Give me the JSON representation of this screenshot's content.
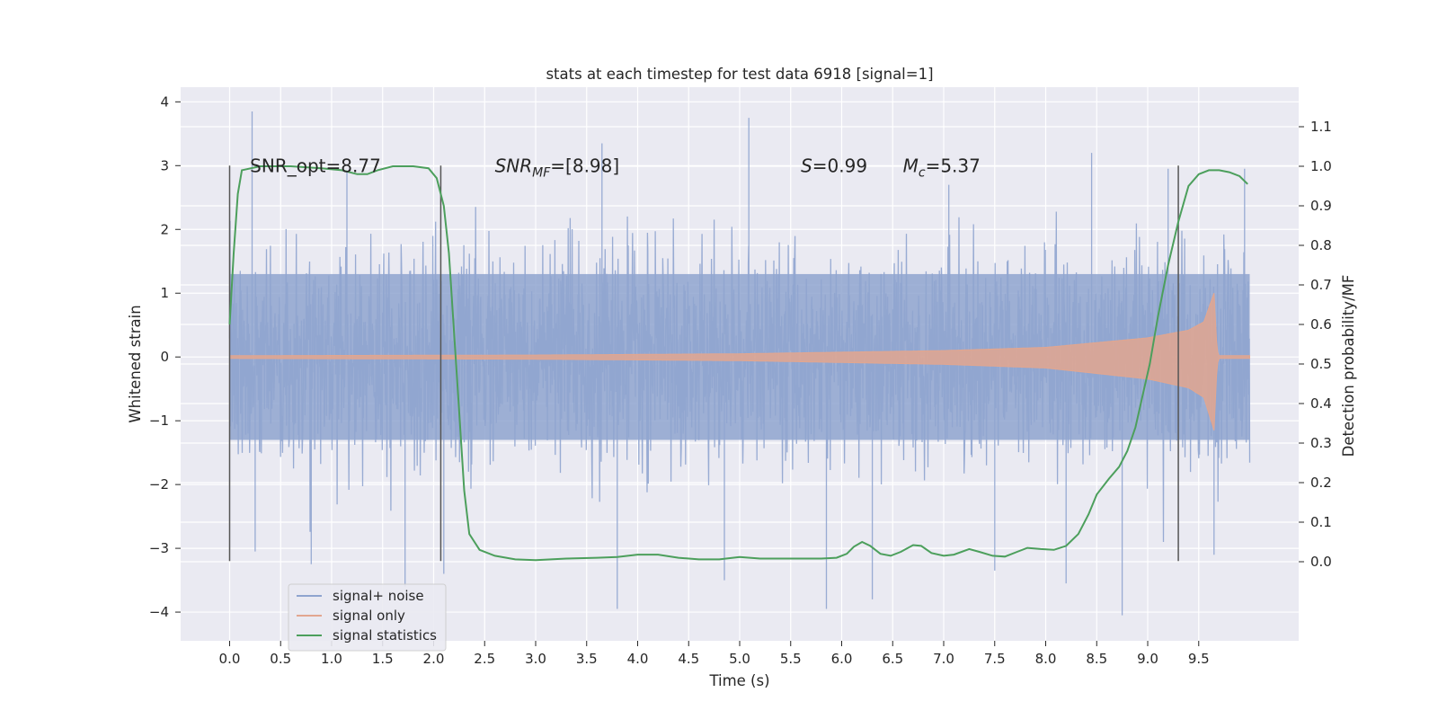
{
  "chart_data": {
    "type": "line",
    "title": "stats at each timestep for test data 6918 [signal=1]",
    "xlabel": "Time (s)",
    "ylabel": "Whitened strain",
    "y2label": "Detection probability/MF",
    "xlim": [
      -0.48,
      10.48
    ],
    "ylim": [
      -4.45,
      4.23
    ],
    "y2lim": [
      -0.2,
      1.2
    ],
    "xticks": [
      0.0,
      0.5,
      1.0,
      1.5,
      2.0,
      2.5,
      3.0,
      3.5,
      4.0,
      4.5,
      5.0,
      5.5,
      6.0,
      6.5,
      7.0,
      7.5,
      8.0,
      8.5,
      9.0,
      9.5
    ],
    "xtick_labels": [
      "0.0",
      "0.5",
      "1.0",
      "1.5",
      "2.0",
      "2.5",
      "3.0",
      "3.5",
      "4.0",
      "4.5",
      "5.0",
      "5.5",
      "6.0",
      "6.5",
      "7.0",
      "7.5",
      "8.0",
      "8.5",
      "9.0",
      "9.5"
    ],
    "yticks": [
      -4,
      -3,
      -2,
      -1,
      0,
      1,
      2,
      3,
      4
    ],
    "ytick_labels": [
      "−4",
      "−3",
      "−2",
      "−1",
      "0",
      "1",
      "2",
      "3",
      "4"
    ],
    "y2ticks": [
      0.0,
      0.1,
      0.2,
      0.3,
      0.4,
      0.5,
      0.6,
      0.7,
      0.8,
      0.9,
      1.0,
      1.1
    ],
    "y2tick_labels": [
      "0.0",
      "0.1",
      "0.2",
      "0.3",
      "0.4",
      "0.5",
      "0.6",
      "0.7",
      "0.8",
      "0.9",
      "1.0",
      "1.1"
    ],
    "grid": true,
    "legend_position": "bottom-left",
    "series": [
      {
        "name": "signal+ noise",
        "color": "#8fa4cf",
        "axis": "left",
        "t_range": [
          0.0,
          10.0
        ],
        "typical_envelope": [
          -1.3,
          1.3
        ],
        "spikes": [
          [
            0.22,
            3.85
          ],
          [
            0.25,
            -3.05
          ],
          [
            0.8,
            -3.25
          ],
          [
            1.15,
            2.9
          ],
          [
            1.72,
            -3.6
          ],
          [
            2.1,
            -3.4
          ],
          [
            3.65,
            3.35
          ],
          [
            3.8,
            -3.95
          ],
          [
            5.09,
            3.75
          ],
          [
            4.85,
            -3.5
          ],
          [
            5.85,
            -3.95
          ],
          [
            6.3,
            -3.8
          ],
          [
            7.05,
            2.7
          ],
          [
            7.5,
            -3.35
          ],
          [
            8.2,
            -3.55
          ],
          [
            8.45,
            3.2
          ],
          [
            8.75,
            -4.05
          ],
          [
            9.2,
            2.95
          ],
          [
            9.65,
            -3.1
          ],
          [
            9.95,
            2.95
          ]
        ]
      },
      {
        "name": "signal only",
        "color": "#e2a68f",
        "axis": "left",
        "t_range": [
          0.0,
          10.0
        ],
        "amplitude": [
          [
            0.0,
            0.02
          ],
          [
            3.0,
            0.03
          ],
          [
            5.0,
            0.05
          ],
          [
            7.0,
            0.1
          ],
          [
            8.0,
            0.15
          ],
          [
            9.0,
            0.3
          ],
          [
            9.4,
            0.42
          ],
          [
            9.55,
            0.55
          ],
          [
            9.65,
            1.0
          ],
          [
            9.68,
            0.1
          ],
          [
            9.7,
            0.02
          ],
          [
            10.0,
            0.02
          ]
        ]
      },
      {
        "name": "signal statistics",
        "color": "#4c9f5c",
        "axis": "right",
        "points": [
          [
            0.0,
            0.6
          ],
          [
            0.04,
            0.78
          ],
          [
            0.08,
            0.93
          ],
          [
            0.12,
            0.99
          ],
          [
            0.3,
            1.0
          ],
          [
            0.6,
            1.0
          ],
          [
            0.9,
            0.995
          ],
          [
            1.1,
            0.99
          ],
          [
            1.25,
            0.98
          ],
          [
            1.35,
            0.98
          ],
          [
            1.45,
            0.99
          ],
          [
            1.6,
            1.0
          ],
          [
            1.8,
            1.0
          ],
          [
            1.95,
            0.995
          ],
          [
            2.03,
            0.97
          ],
          [
            2.1,
            0.9
          ],
          [
            2.15,
            0.78
          ],
          [
            2.2,
            0.58
          ],
          [
            2.25,
            0.38
          ],
          [
            2.3,
            0.18
          ],
          [
            2.35,
            0.07
          ],
          [
            2.45,
            0.03
          ],
          [
            2.6,
            0.015
          ],
          [
            2.8,
            0.006
          ],
          [
            3.0,
            0.004
          ],
          [
            3.3,
            0.008
          ],
          [
            3.6,
            0.01
          ],
          [
            3.8,
            0.012
          ],
          [
            4.0,
            0.018
          ],
          [
            4.2,
            0.018
          ],
          [
            4.4,
            0.01
          ],
          [
            4.6,
            0.006
          ],
          [
            4.8,
            0.006
          ],
          [
            5.0,
            0.012
          ],
          [
            5.2,
            0.008
          ],
          [
            5.5,
            0.008
          ],
          [
            5.8,
            0.008
          ],
          [
            5.95,
            0.01
          ],
          [
            6.05,
            0.02
          ],
          [
            6.12,
            0.038
          ],
          [
            6.2,
            0.05
          ],
          [
            6.28,
            0.04
          ],
          [
            6.38,
            0.02
          ],
          [
            6.48,
            0.015
          ],
          [
            6.58,
            0.025
          ],
          [
            6.7,
            0.042
          ],
          [
            6.78,
            0.04
          ],
          [
            6.88,
            0.022
          ],
          [
            7.0,
            0.015
          ],
          [
            7.1,
            0.018
          ],
          [
            7.25,
            0.032
          ],
          [
            7.35,
            0.025
          ],
          [
            7.48,
            0.015
          ],
          [
            7.6,
            0.013
          ],
          [
            7.72,
            0.025
          ],
          [
            7.82,
            0.035
          ],
          [
            7.95,
            0.032
          ],
          [
            8.08,
            0.03
          ],
          [
            8.2,
            0.04
          ],
          [
            8.32,
            0.07
          ],
          [
            8.42,
            0.12
          ],
          [
            8.5,
            0.17
          ],
          [
            8.62,
            0.21
          ],
          [
            8.72,
            0.24
          ],
          [
            8.8,
            0.28
          ],
          [
            8.88,
            0.34
          ],
          [
            8.95,
            0.42
          ],
          [
            9.02,
            0.5
          ],
          [
            9.1,
            0.62
          ],
          [
            9.2,
            0.75
          ],
          [
            9.3,
            0.86
          ],
          [
            9.4,
            0.95
          ],
          [
            9.5,
            0.98
          ],
          [
            9.6,
            0.99
          ],
          [
            9.7,
            0.99
          ],
          [
            9.8,
            0.985
          ],
          [
            9.9,
            0.975
          ],
          [
            9.98,
            0.955
          ]
        ]
      }
    ],
    "vlines": [
      0.0,
      2.07,
      9.3
    ],
    "vline_range": [
      -3.2,
      3.0
    ],
    "annotations": [
      {
        "text": "SNR_opt=8.77",
        "x": 0.2,
        "y": 3.0
      },
      {
        "text": "SNR",
        "sub": "MF",
        "suffix": "=[8.98]",
        "x": 2.6,
        "y": 3.0
      },
      {
        "text": "S",
        "suffix": "=0.99",
        "x": 5.6,
        "y": 3.0
      },
      {
        "text": "M",
        "sub": "c",
        "suffix": "=5.37",
        "x": 6.6,
        "y": 3.0
      }
    ]
  }
}
